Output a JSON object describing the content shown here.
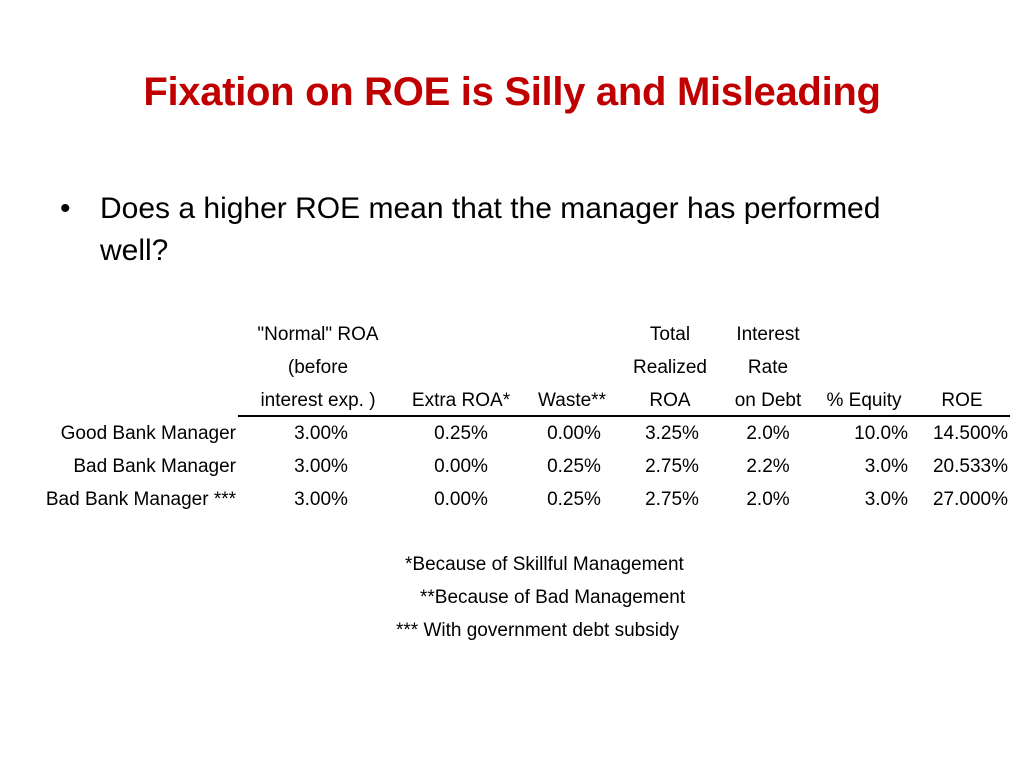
{
  "title": "Fixation on ROE is Silly and Misleading",
  "bullet": {
    "symbol": "•",
    "text": "Does a higher ROE mean that the manager has performed well?"
  },
  "table": {
    "headers": [
      [
        "\"Normal\" ROA",
        "(before",
        "interest exp. )"
      ],
      [
        "",
        "",
        "Extra ROA*"
      ],
      [
        "",
        "",
        "Waste**"
      ],
      [
        "Total",
        "Realized",
        "ROA"
      ],
      [
        "Interest",
        "Rate",
        "on Debt"
      ],
      [
        "",
        "",
        "% Equity"
      ],
      [
        "",
        "",
        "ROE"
      ]
    ],
    "rows": [
      {
        "label": "Good Bank Manager",
        "cells": [
          "3.00%",
          "0.25%",
          "0.00%",
          "3.25%",
          "2.0%",
          "10.0%",
          "14.500%"
        ]
      },
      {
        "label": "Bad Bank Manager",
        "cells": [
          "3.00%",
          "0.00%",
          "0.25%",
          "2.75%",
          "2.2%",
          "3.0%",
          "20.533%"
        ]
      },
      {
        "label": "Bad Bank Manager ***",
        "cells": [
          "3.00%",
          "0.00%",
          "0.25%",
          "2.75%",
          "2.0%",
          "3.0%",
          "27.000%"
        ]
      }
    ]
  },
  "footnotes": [
    "*Because of Skillful Management",
    "**Because of Bad Management",
    "*** With government debt subsidy"
  ],
  "colors": {
    "title": "#c00000",
    "text": "#000000",
    "background": "#ffffff"
  }
}
